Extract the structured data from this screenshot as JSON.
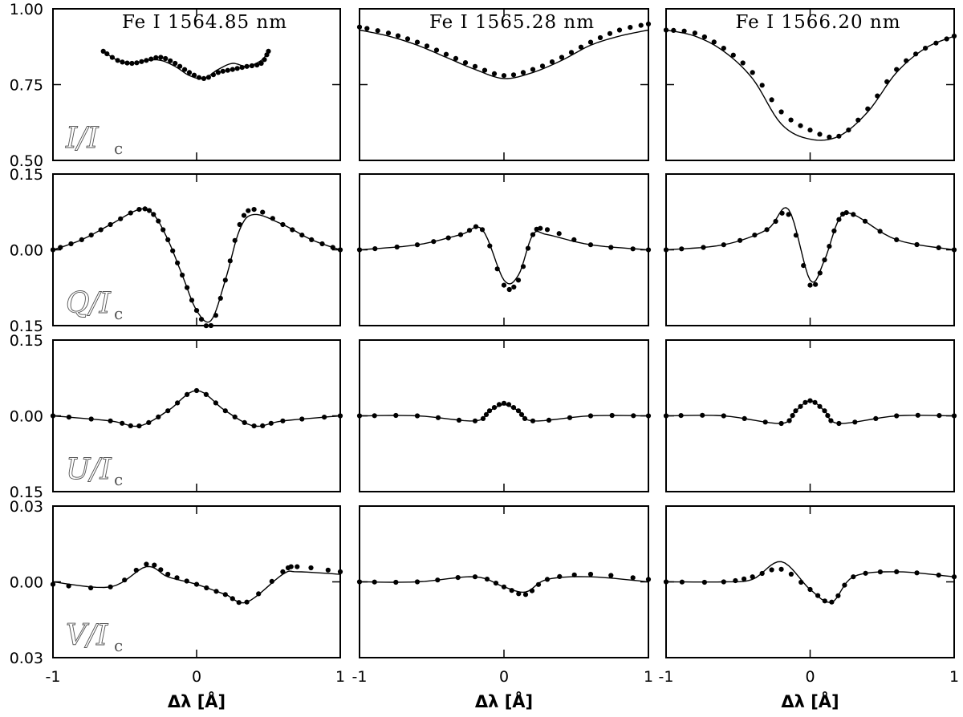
{
  "chart_data": {
    "type": "line",
    "grid": false,
    "columns": [
      "Fe I 1564.85 nm",
      "Fe I 1565.28 nm",
      "Fe I 1566.20 nm"
    ],
    "row_labels": [
      {
        "stokes": "I",
        "ic": "I",
        "sub": "c"
      },
      {
        "stokes": "Q",
        "ic": "I",
        "sub": "c"
      },
      {
        "stokes": "U",
        "ic": "I",
        "sub": "c"
      },
      {
        "stokes": "V",
        "ic": "I",
        "sub": "c"
      }
    ],
    "xlabel": "Δλ [Å]",
    "xlim": [
      -1,
      1
    ],
    "x_tick_labels": [
      "-1",
      "0",
      "1"
    ],
    "rows": [
      {
        "ylim": [
          0.5,
          1.0
        ],
        "y_tick_labels": [
          "1.00",
          "0.75",
          "0.50"
        ]
      },
      {
        "ylim": [
          -0.15,
          0.15
        ],
        "y_tick_labels": [
          "0.15",
          "0.00",
          "0.15"
        ]
      },
      {
        "ylim": [
          -0.15,
          0.15
        ],
        "y_tick_labels": [
          "0.15",
          "0.00",
          "0.15"
        ]
      },
      {
        "ylim": [
          -0.03,
          0.03
        ],
        "y_tick_labels": [
          "0.03",
          "0.00",
          "0.03"
        ]
      }
    ],
    "panels": [
      {
        "row": 0,
        "col": 0,
        "observed": {
          "x": [
            -0.65,
            -0.55,
            -0.45,
            -0.35,
            -0.25,
            -0.15,
            -0.05,
            0.05,
            0.15,
            0.25,
            0.35,
            0.45,
            0.5
          ],
          "y": [
            0.86,
            0.83,
            0.82,
            0.83,
            0.84,
            0.82,
            0.79,
            0.77,
            0.79,
            0.8,
            0.81,
            0.82,
            0.86
          ]
        },
        "fit": {
          "x": [
            -0.65,
            -0.55,
            -0.45,
            -0.35,
            -0.25,
            -0.15,
            -0.05,
            0.05,
            0.15,
            0.25,
            0.35,
            0.45,
            0.5
          ],
          "y": [
            0.86,
            0.83,
            0.82,
            0.83,
            0.83,
            0.81,
            0.78,
            0.77,
            0.8,
            0.82,
            0.81,
            0.83,
            0.86
          ]
        }
      },
      {
        "row": 0,
        "col": 1,
        "observed": {
          "x": [
            -1.0,
            -0.8,
            -0.6,
            -0.4,
            -0.2,
            0.0,
            0.2,
            0.4,
            0.6,
            0.8,
            1.0
          ],
          "y": [
            0.94,
            0.92,
            0.89,
            0.85,
            0.81,
            0.78,
            0.8,
            0.84,
            0.89,
            0.93,
            0.95
          ]
        },
        "fit": {
          "x": [
            -1.0,
            -0.8,
            -0.6,
            -0.4,
            -0.2,
            0.0,
            0.2,
            0.4,
            0.6,
            0.8,
            1.0
          ],
          "y": [
            0.93,
            0.91,
            0.88,
            0.84,
            0.8,
            0.77,
            0.79,
            0.83,
            0.88,
            0.91,
            0.93
          ]
        }
      },
      {
        "row": 0,
        "col": 2,
        "observed": {
          "x": [
            -1.0,
            -0.8,
            -0.6,
            -0.4,
            -0.2,
            0.0,
            0.2,
            0.4,
            0.6,
            0.8,
            1.0
          ],
          "y": [
            0.93,
            0.92,
            0.87,
            0.79,
            0.66,
            0.6,
            0.58,
            0.67,
            0.8,
            0.87,
            0.91
          ]
        },
        "fit": {
          "x": [
            -1.0,
            -0.8,
            -0.6,
            -0.4,
            -0.2,
            0.0,
            0.2,
            0.4,
            0.6,
            0.8,
            1.0
          ],
          "y": [
            0.93,
            0.91,
            0.86,
            0.77,
            0.62,
            0.57,
            0.58,
            0.66,
            0.79,
            0.87,
            0.91
          ]
        }
      },
      {
        "row": 1,
        "col": 0,
        "observed": {
          "x": [
            -1.0,
            -0.8,
            -0.6,
            -0.4,
            -0.3,
            -0.2,
            -0.1,
            0.0,
            0.1,
            0.2,
            0.3,
            0.4,
            0.6,
            0.8,
            1.0
          ],
          "y": [
            0.0,
            0.02,
            0.05,
            0.08,
            0.07,
            0.02,
            -0.05,
            -0.12,
            -0.15,
            -0.06,
            0.05,
            0.08,
            0.05,
            0.02,
            0.0
          ]
        },
        "fit": {
          "x": [
            -1.0,
            -0.8,
            -0.6,
            -0.4,
            -0.3,
            -0.2,
            -0.1,
            0.0,
            0.1,
            0.2,
            0.3,
            0.4,
            0.6,
            0.8,
            1.0
          ],
          "y": [
            0.0,
            0.02,
            0.05,
            0.08,
            0.07,
            0.02,
            -0.05,
            -0.12,
            -0.14,
            -0.06,
            0.04,
            0.07,
            0.05,
            0.02,
            0.0
          ]
        }
      },
      {
        "row": 1,
        "col": 1,
        "observed": {
          "x": [
            -1.0,
            -0.6,
            -0.3,
            -0.15,
            0.0,
            0.1,
            0.2,
            0.3,
            0.6,
            1.0
          ],
          "y": [
            0.0,
            0.01,
            0.03,
            0.04,
            -0.07,
            -0.06,
            0.03,
            0.04,
            0.01,
            0.0
          ]
        },
        "fit": {
          "x": [
            -1.0,
            -0.6,
            -0.3,
            -0.15,
            0.0,
            0.1,
            0.2,
            0.3,
            0.6,
            1.0
          ],
          "y": [
            0.0,
            0.01,
            0.03,
            0.04,
            -0.06,
            -0.05,
            0.03,
            0.03,
            0.01,
            0.0
          ]
        }
      },
      {
        "row": 1,
        "col": 2,
        "observed": {
          "x": [
            -1.0,
            -0.6,
            -0.3,
            -0.15,
            0.0,
            0.1,
            0.2,
            0.3,
            0.6,
            1.0
          ],
          "y": [
            0.0,
            0.01,
            0.04,
            0.07,
            -0.07,
            -0.02,
            0.06,
            0.07,
            0.02,
            0.0
          ]
        },
        "fit": {
          "x": [
            -1.0,
            -0.6,
            -0.3,
            -0.15,
            0.0,
            0.1,
            0.2,
            0.3,
            0.6,
            1.0
          ],
          "y": [
            0.0,
            0.01,
            0.04,
            0.08,
            -0.06,
            -0.02,
            0.06,
            0.07,
            0.02,
            0.0
          ]
        }
      },
      {
        "row": 2,
        "col": 0,
        "observed": {
          "x": [
            -1.0,
            -0.6,
            -0.4,
            -0.2,
            0.0,
            0.2,
            0.4,
            0.6,
            1.0
          ],
          "y": [
            0.0,
            -0.01,
            -0.02,
            0.01,
            0.05,
            0.01,
            -0.02,
            -0.01,
            0.0
          ]
        },
        "fit": {
          "x": [
            -1.0,
            -0.6,
            -0.4,
            -0.2,
            0.0,
            0.2,
            0.4,
            0.6,
            1.0
          ],
          "y": [
            0.0,
            -0.01,
            -0.02,
            0.01,
            0.05,
            0.01,
            -0.02,
            -0.01,
            0.0
          ]
        }
      },
      {
        "row": 2,
        "col": 1,
        "observed": {
          "x": [
            -1.0,
            -0.6,
            -0.2,
            -0.1,
            0.0,
            0.1,
            0.2,
            0.6,
            1.0
          ],
          "y": [
            0.0,
            0.0,
            -0.01,
            0.01,
            0.025,
            0.01,
            -0.01,
            0.0,
            0.0
          ]
        },
        "fit": {
          "x": [
            -1.0,
            -0.6,
            -0.2,
            -0.1,
            0.0,
            0.1,
            0.2,
            0.6,
            1.0
          ],
          "y": [
            0.0,
            0.0,
            -0.01,
            0.01,
            0.022,
            0.01,
            -0.01,
            0.0,
            0.0
          ]
        }
      },
      {
        "row": 2,
        "col": 2,
        "observed": {
          "x": [
            -1.0,
            -0.6,
            -0.2,
            -0.1,
            0.0,
            0.1,
            0.2,
            0.6,
            1.0
          ],
          "y": [
            0.0,
            0.0,
            -0.015,
            0.01,
            0.03,
            0.01,
            -0.015,
            0.0,
            0.0
          ]
        },
        "fit": {
          "x": [
            -1.0,
            -0.6,
            -0.2,
            -0.1,
            0.0,
            0.1,
            0.2,
            0.6,
            1.0
          ],
          "y": [
            0.0,
            0.0,
            -0.015,
            0.01,
            0.03,
            0.01,
            -0.015,
            0.0,
            0.0
          ]
        }
      },
      {
        "row": 3,
        "col": 0,
        "observed": {
          "x": [
            -1.0,
            -0.6,
            -0.35,
            -0.2,
            0.0,
            0.2,
            0.35,
            0.6,
            0.7,
            1.0
          ],
          "y": [
            -0.001,
            -0.002,
            0.007,
            0.003,
            -0.001,
            -0.005,
            -0.008,
            0.004,
            0.006,
            0.004
          ]
        },
        "fit": {
          "x": [
            -1.0,
            -0.6,
            -0.35,
            -0.2,
            0.0,
            0.2,
            0.35,
            0.6,
            0.7,
            1.0
          ],
          "y": [
            0.0,
            -0.002,
            0.006,
            0.002,
            -0.001,
            -0.005,
            -0.008,
            0.003,
            0.004,
            0.003
          ]
        }
      },
      {
        "row": 3,
        "col": 1,
        "observed": {
          "x": [
            -1.0,
            -0.6,
            -0.2,
            0.0,
            0.15,
            0.3,
            0.6,
            1.0
          ],
          "y": [
            0.0,
            0.0,
            0.002,
            -0.002,
            -0.005,
            0.001,
            0.003,
            0.001
          ]
        },
        "fit": {
          "x": [
            -1.0,
            -0.6,
            -0.2,
            0.0,
            0.15,
            0.3,
            0.6,
            1.0
          ],
          "y": [
            0.0,
            0.0,
            0.002,
            -0.002,
            -0.004,
            0.001,
            0.002,
            0.0
          ]
        }
      },
      {
        "row": 3,
        "col": 2,
        "observed": {
          "x": [
            -1.0,
            -0.6,
            -0.4,
            -0.2,
            0.0,
            0.15,
            0.3,
            0.6,
            1.0
          ],
          "y": [
            0.0,
            0.0,
            0.002,
            0.005,
            -0.003,
            -0.008,
            0.002,
            0.004,
            0.002
          ]
        },
        "fit": {
          "x": [
            -1.0,
            -0.6,
            -0.4,
            -0.2,
            0.0,
            0.15,
            0.3,
            0.6,
            1.0
          ],
          "y": [
            0.0,
            0.0,
            0.001,
            0.008,
            -0.003,
            -0.008,
            0.002,
            0.004,
            0.002
          ]
        }
      }
    ]
  }
}
